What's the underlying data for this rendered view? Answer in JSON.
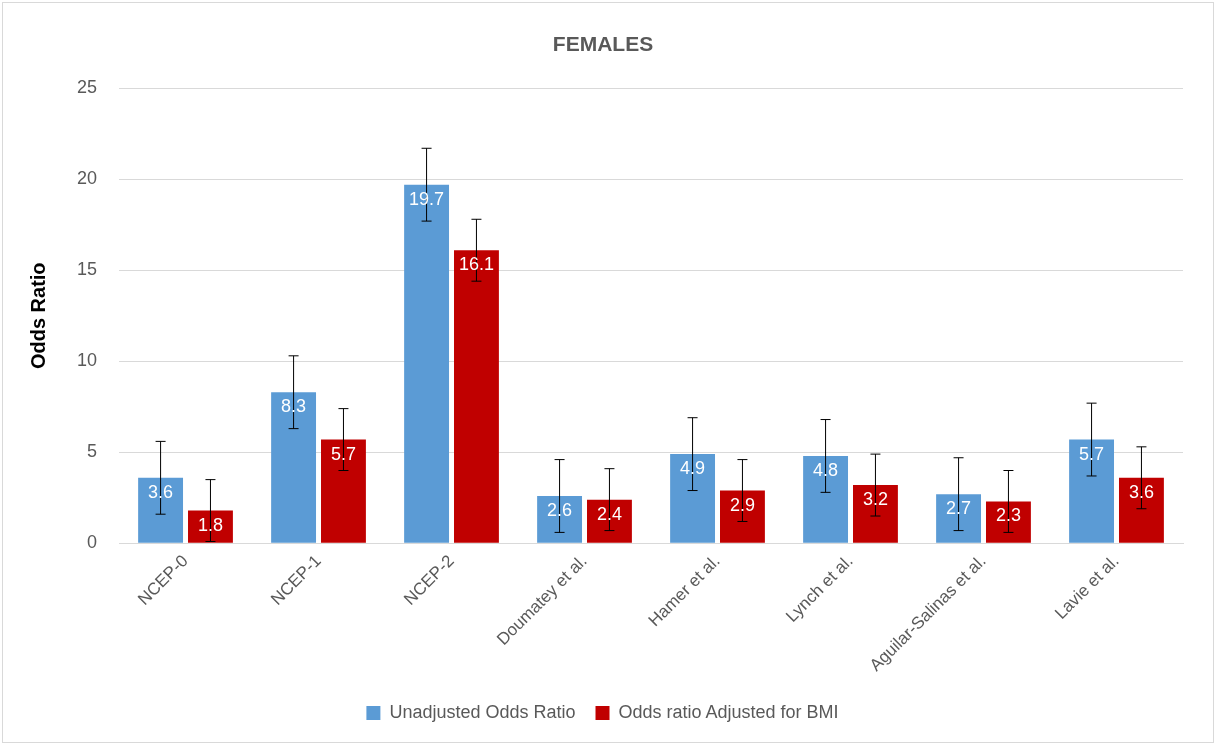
{
  "chart_data": {
    "type": "bar",
    "title": "FEMALES",
    "ylabel": "Odds Ratio",
    "categories": [
      "NCEP-0",
      "NCEP-1",
      "NCEP-2",
      "Doumatey et al.",
      "Hamer et al.",
      "Lynch et al.",
      "Aguilar-Salinas et al.",
      "Lavie et al."
    ],
    "series": [
      {
        "name": "Unadjusted Odds Ratio",
        "color": "#5b9bd5",
        "values": [
          3.6,
          8.3,
          19.7,
          2.6,
          4.9,
          4.8,
          2.7,
          5.7
        ],
        "errors": [
          2,
          2,
          2,
          2,
          2,
          2,
          2,
          2
        ]
      },
      {
        "name": "Odds ratio Adjusted for BMI",
        "color": "#c00000",
        "values": [
          1.8,
          5.7,
          16.1,
          2.4,
          2.9,
          3.2,
          2.3,
          3.6
        ],
        "errors": [
          1.7,
          1.7,
          1.7,
          1.7,
          1.7,
          1.7,
          1.7,
          1.7
        ]
      }
    ],
    "ylim": [
      0,
      25
    ],
    "yticks": [
      0,
      5,
      10,
      15,
      20,
      25
    ],
    "grid": "y",
    "legend": "bottom",
    "data_labels": true
  }
}
